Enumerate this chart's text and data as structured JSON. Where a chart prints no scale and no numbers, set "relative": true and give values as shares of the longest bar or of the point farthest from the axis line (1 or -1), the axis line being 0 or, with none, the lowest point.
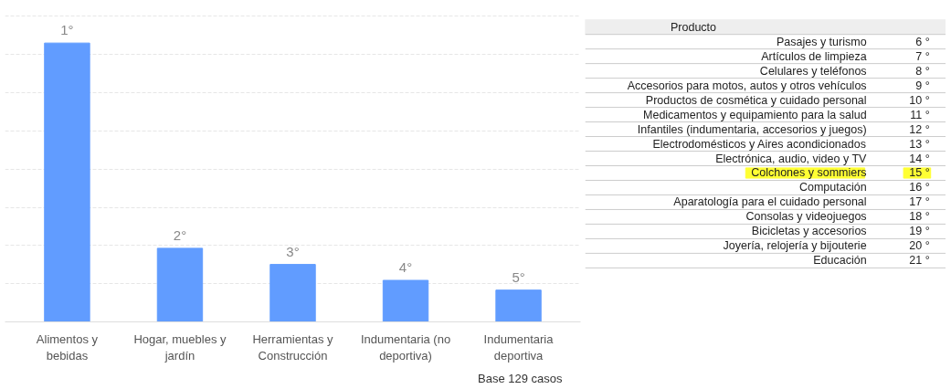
{
  "chart_data": [
    {
      "type": "bar",
      "relative": true,
      "grid": "y",
      "color": "#619cff",
      "categories": [
        "Alimentos y bebidas",
        "Hogar, muebles y jardín",
        "Herramientas y Construcción",
        "Indumentaria (no deportiva)",
        "Indumentaria deportiva"
      ],
      "values": [
        1,
        0.264,
        0.206,
        0.149,
        0.114
      ],
      "annotations": [
        {
          "text": "1°",
          "x": "Alimentos y bebidas",
          "y": 1
        },
        {
          "text": "2°",
          "x": "Hogar, muebles y jardín",
          "y": 0.264
        },
        {
          "text": "3°",
          "x": "Herramientas y Construcción",
          "y": 0.206
        },
        {
          "text": "4°",
          "x": "Indumentaria (no deportiva)",
          "y": 0.149
        },
        {
          "text": "5°",
          "x": "Indumentaria deportiva",
          "y": 0.114
        },
        "Base 129 casos"
      ]
    },
    {
      "type": "other",
      "title": "Producto",
      "categories": [
        "Pasajes y turismo",
        "Artículos de limpieza",
        "Celulares y teléfonos",
        "Accesorios para motos, autos y otros vehículos",
        "Productos de cosmética y cuidado personal",
        "Medicamentos y equipamiento para la salud",
        "Infantiles (indumentaria, accesorios y juegos)",
        "Electrodomésticos y Aires acondicionados",
        "Electrónica, audio, video y TV",
        "Colchones y sommiers",
        "Computación",
        "Aparatología para el cuidado personal",
        "Consolas y videojuegos",
        "Bicicletas y accesorios",
        "Joyería, relojería y bijouterie",
        "Educación"
      ],
      "values": [
        6,
        7,
        8,
        9,
        10,
        11,
        12,
        13,
        14,
        15,
        16,
        17,
        18,
        19,
        20,
        21
      ],
      "value_labels": [
        "6 °",
        "7 °",
        "8 °",
        "9 °",
        "10 °",
        "11 °",
        "12 °",
        "13 °",
        "14 °",
        "15 °",
        "16 °",
        "17 °",
        "18 °",
        "19 °",
        "20 °",
        "21 °"
      ],
      "colors": [
        "#ffffff",
        "#ffffff",
        "#ffffff",
        "#ffffff",
        "#ffffff",
        "#ffffff",
        "#ffffff",
        "#ffffff",
        "#ffffff",
        "#ffff33",
        "#ffffff",
        "#ffffff",
        "#ffffff",
        "#ffffff",
        "#ffffff",
        "#ffffff"
      ]
    }
  ]
}
